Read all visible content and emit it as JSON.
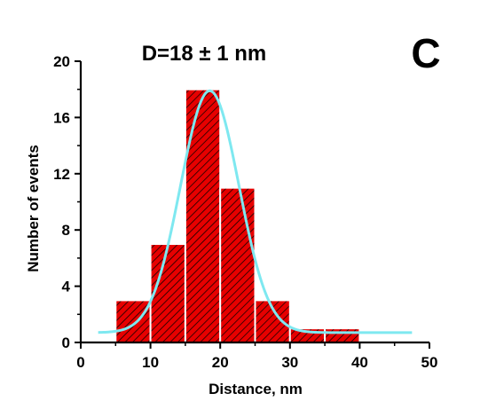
{
  "chart_data": {
    "type": "bar",
    "title": "D=18 ± 1 nm",
    "panel_label": "C",
    "xlabel": "Distance, nm",
    "ylabel": "Number of events",
    "xlim": [
      0,
      50
    ],
    "ylim": [
      0,
      20
    ],
    "x_ticks": [
      "0",
      "10",
      "20",
      "30",
      "40",
      "50"
    ],
    "y_ticks": [
      "0",
      "4",
      "8",
      "12",
      "16",
      "20"
    ],
    "bins": [
      {
        "from": 5,
        "to": 10,
        "value": 3
      },
      {
        "from": 10,
        "to": 15,
        "value": 7
      },
      {
        "from": 15,
        "to": 20,
        "value": 18
      },
      {
        "from": 20,
        "to": 25,
        "value": 11
      },
      {
        "from": 25,
        "to": 30,
        "value": 3
      },
      {
        "from": 30,
        "to": 35,
        "value": 1
      },
      {
        "from": 35,
        "to": 40,
        "value": 1
      }
    ],
    "fit": {
      "type": "gaussian",
      "center": 18.5,
      "sigma": 4.2,
      "amplitude": 17.2,
      "baseline": 0.7,
      "x_range": [
        2.5,
        47.5
      ]
    },
    "colors": {
      "bar_fill": "#e60000",
      "hatch": "#000000",
      "fit_line": "#7ee8f0",
      "axis": "#000000"
    },
    "grid": false
  }
}
